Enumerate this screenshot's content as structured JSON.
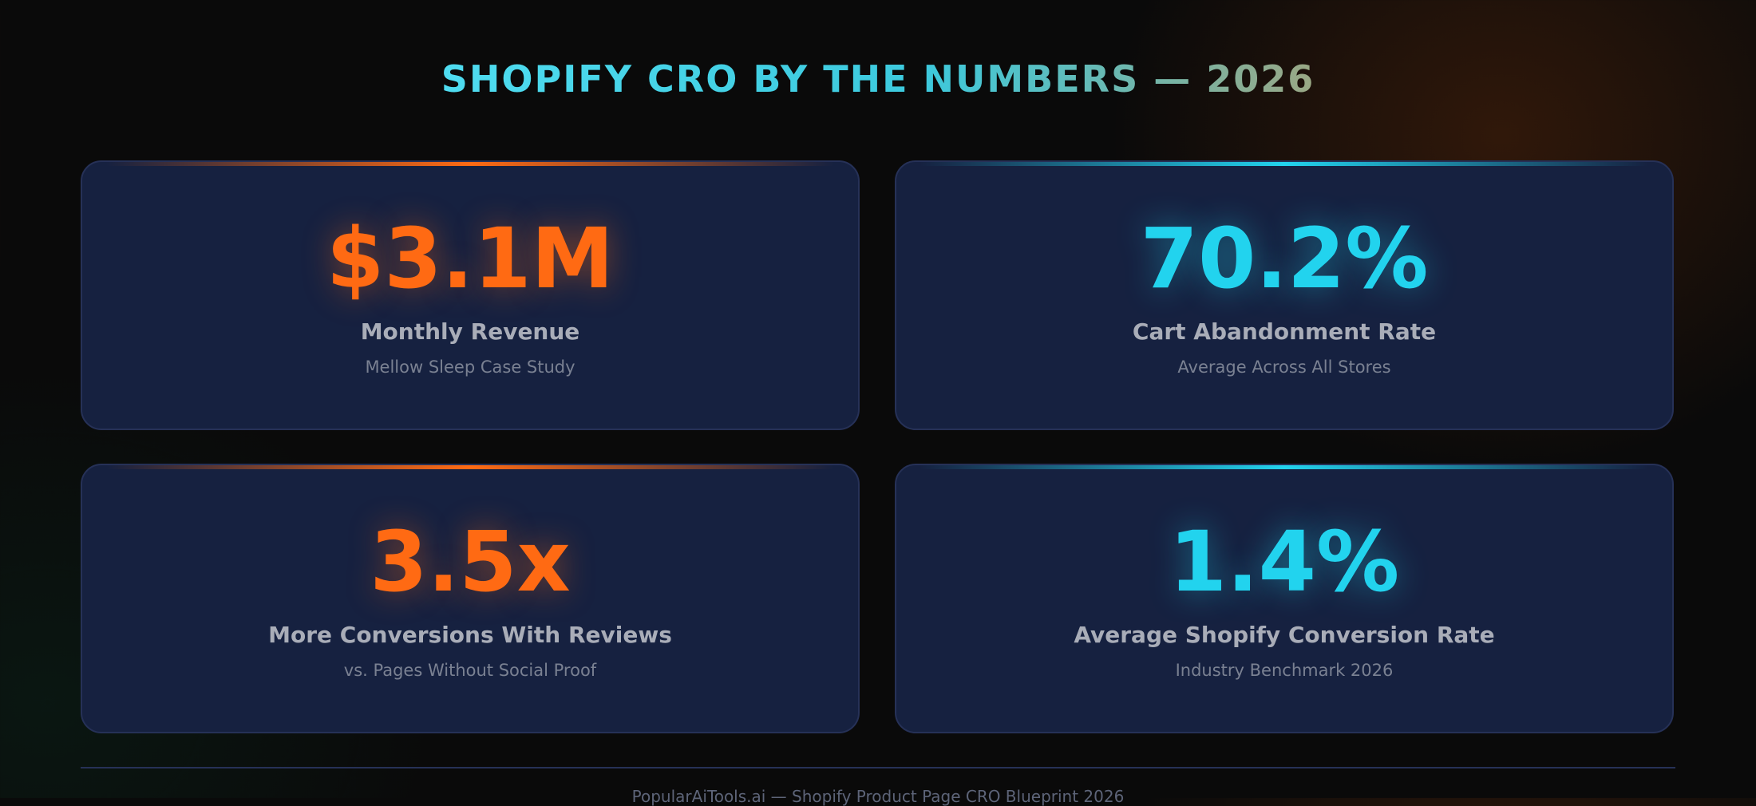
{
  "header": {
    "title": "SHOPIFY CRO BY THE NUMBERS — 2026"
  },
  "cards": [
    {
      "value": "$3.1M",
      "label": "Monthly Revenue",
      "sublabel": "Mellow Sleep Case Study"
    },
    {
      "value": "70.2%",
      "label": "Cart Abandonment Rate",
      "sublabel": "Average Across All Stores"
    },
    {
      "value": "3.5x",
      "label": "More Conversions With Reviews",
      "sublabel": "vs. Pages Without Social Proof"
    },
    {
      "value": "1.4%",
      "label": "Average Shopify Conversion Rate",
      "sublabel": "Industry Benchmark 2026"
    }
  ],
  "footer": {
    "text": "PopularAiTools.ai — Shopify Product Page CRO Blueprint 2026"
  }
}
